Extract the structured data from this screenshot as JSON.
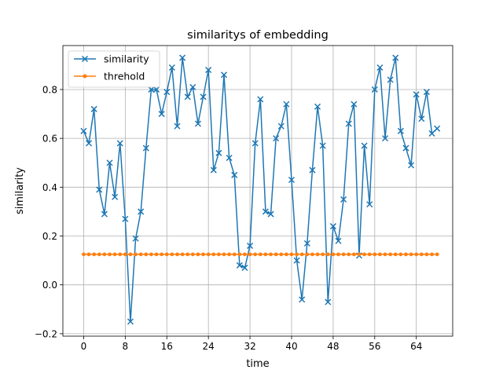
{
  "chart_data": {
    "type": "line",
    "title": "similaritys of embedding",
    "xlabel": "time",
    "ylabel": "similarity",
    "xlim": [
      -4,
      71
    ],
    "ylim": [
      -0.21,
      0.98
    ],
    "xticks": [
      0,
      8,
      16,
      24,
      32,
      40,
      48,
      56,
      64
    ],
    "yticks": [
      -0.2,
      0.0,
      0.2,
      0.4,
      0.6,
      0.8
    ],
    "ytick_labels": [
      "−0.2",
      "0.0",
      "0.2",
      "0.4",
      "0.6",
      "0.8"
    ],
    "grid": true,
    "legend": "top-left",
    "series": [
      {
        "name": "similarity",
        "color": "#1f77b4",
        "marker": "x",
        "x": [
          0,
          1,
          2,
          3,
          4,
          5,
          6,
          7,
          8,
          9,
          10,
          11,
          12,
          13,
          14,
          15,
          16,
          17,
          18,
          19,
          20,
          21,
          22,
          23,
          24,
          25,
          26,
          27,
          28,
          29,
          30,
          31,
          32,
          33,
          34,
          35,
          36,
          37,
          38,
          39,
          40,
          41,
          42,
          43,
          44,
          45,
          46,
          47,
          48,
          49,
          50,
          51,
          52,
          53,
          54,
          55,
          56,
          57,
          58,
          59,
          60,
          61,
          62,
          63,
          64,
          65,
          66,
          67,
          68
        ],
        "values": [
          0.63,
          0.58,
          0.72,
          0.39,
          0.29,
          0.5,
          0.36,
          0.58,
          0.27,
          -0.15,
          0.19,
          0.3,
          0.56,
          0.8,
          0.8,
          0.7,
          0.79,
          0.89,
          0.65,
          0.93,
          0.77,
          0.81,
          0.66,
          0.77,
          0.88,
          0.47,
          0.54,
          0.86,
          0.52,
          0.45,
          0.08,
          0.07,
          0.16,
          0.58,
          0.76,
          0.3,
          0.29,
          0.6,
          0.65,
          0.74,
          0.43,
          0.1,
          -0.06,
          0.17,
          0.47,
          0.73,
          0.57,
          -0.07,
          0.24,
          0.18,
          0.35,
          0.66,
          0.74,
          0.12,
          0.57,
          0.33,
          0.8,
          0.89,
          0.6,
          0.84,
          0.93,
          0.63,
          0.56,
          0.49,
          0.78,
          0.68,
          0.79,
          0.62,
          0.64
        ]
      },
      {
        "name": "threhold",
        "color": "#ff7f0e",
        "marker": "dot",
        "x": [
          0,
          1,
          2,
          3,
          4,
          5,
          6,
          7,
          8,
          9,
          10,
          11,
          12,
          13,
          14,
          15,
          16,
          17,
          18,
          19,
          20,
          21,
          22,
          23,
          24,
          25,
          26,
          27,
          28,
          29,
          30,
          31,
          32,
          33,
          34,
          35,
          36,
          37,
          38,
          39,
          40,
          41,
          42,
          43,
          44,
          45,
          46,
          47,
          48,
          49,
          50,
          51,
          52,
          53,
          54,
          55,
          56,
          57,
          58,
          59,
          60,
          61,
          62,
          63,
          64,
          65,
          66,
          67,
          68
        ],
        "values": [
          0.125,
          0.125,
          0.125,
          0.125,
          0.125,
          0.125,
          0.125,
          0.125,
          0.125,
          0.125,
          0.125,
          0.125,
          0.125,
          0.125,
          0.125,
          0.125,
          0.125,
          0.125,
          0.125,
          0.125,
          0.125,
          0.125,
          0.125,
          0.125,
          0.125,
          0.125,
          0.125,
          0.125,
          0.125,
          0.125,
          0.125,
          0.125,
          0.125,
          0.125,
          0.125,
          0.125,
          0.125,
          0.125,
          0.125,
          0.125,
          0.125,
          0.125,
          0.125,
          0.125,
          0.125,
          0.125,
          0.125,
          0.125,
          0.125,
          0.125,
          0.125,
          0.125,
          0.125,
          0.125,
          0.125,
          0.125,
          0.125,
          0.125,
          0.125,
          0.125,
          0.125,
          0.125,
          0.125,
          0.125,
          0.125,
          0.125,
          0.125,
          0.125,
          0.125
        ]
      }
    ]
  }
}
